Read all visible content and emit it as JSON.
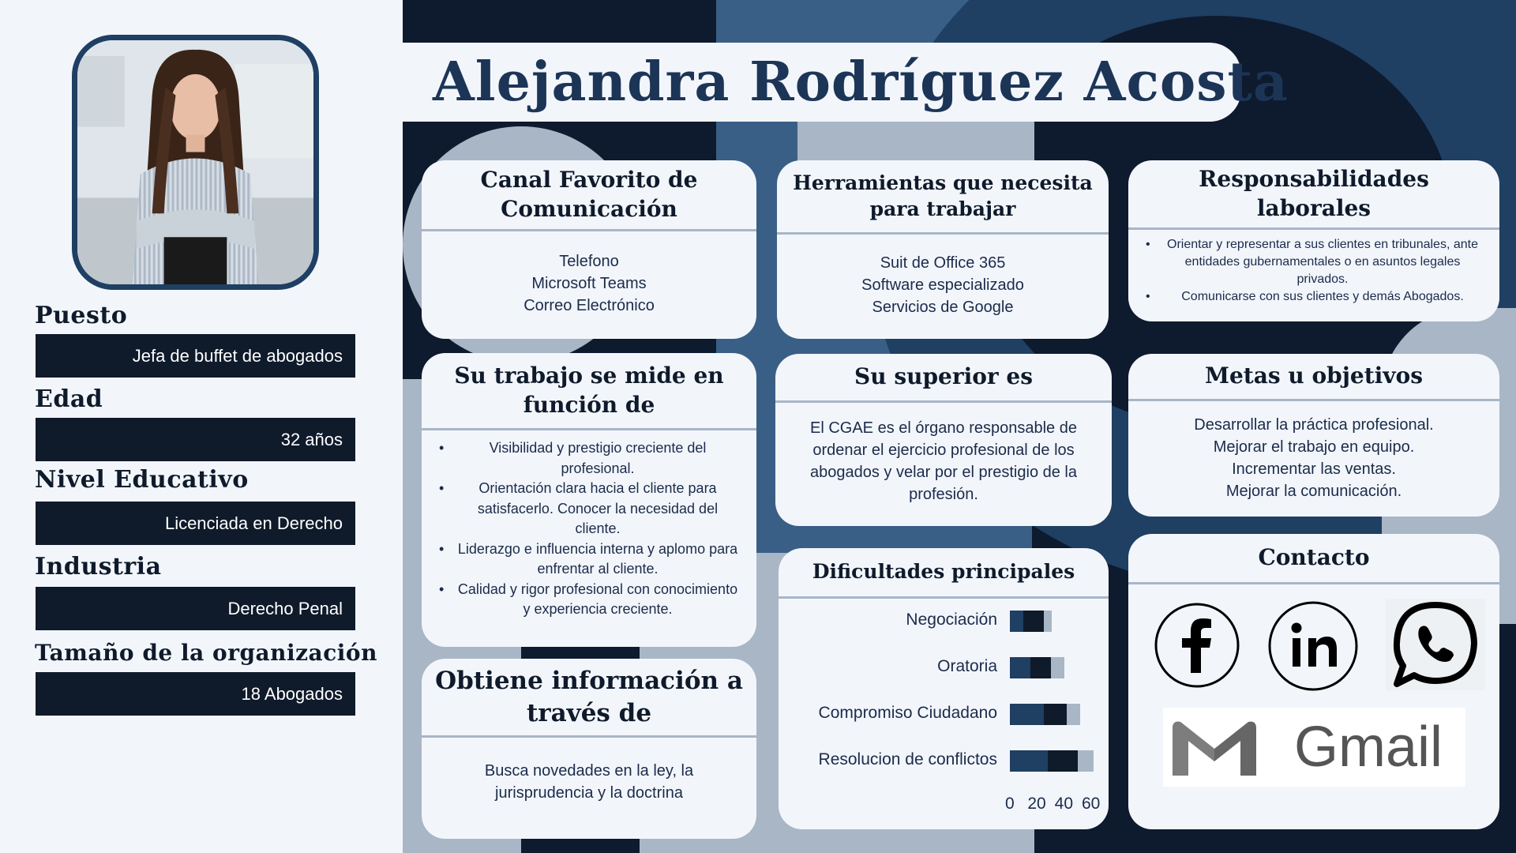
{
  "profile": {
    "name": "Alejandra Rodríguez Acosta",
    "fields": [
      {
        "label": "Puesto",
        "value": "Jefa de buffet de abogados"
      },
      {
        "label": "Edad",
        "value": "32 años"
      },
      {
        "label": "Nivel Educativo",
        "value": "Licenciada en Derecho"
      },
      {
        "label": "Industria",
        "value": "Derecho Penal"
      },
      {
        "label": "Tamaño de la organización",
        "value": "18 Abogados"
      }
    ]
  },
  "cards": {
    "canal": {
      "title": "Canal Favorito de Comunicación",
      "items": [
        "Telefono",
        "Microsoft Teams",
        "Correo Electrónico"
      ]
    },
    "herramientas": {
      "title": "Herramientas que necesita para trabajar",
      "items": [
        "Suit de Office 365",
        "Software especializado",
        "Servicios de Google"
      ]
    },
    "responsabilidades": {
      "title": "Responsabilidades laborales",
      "items": [
        "Orientar y representar a sus clientes en tribunales, ante entidades gubernamentales o en asuntos legales privados.",
        "Comunicarse con sus clientes y demás Abogados."
      ]
    },
    "trabajo": {
      "title": "Su trabajo se mide en función de",
      "items": [
        "Visibilidad y prestigio creciente del profesional.",
        "Orientación clara hacia el cliente para satisfacerlo. Conocer la necesidad del cliente.",
        "Liderazgo e influencia interna y aplomo para enfrentar al cliente.",
        "Calidad y rigor profesional con conocimiento y experiencia creciente."
      ]
    },
    "superior": {
      "title": "Su superior es",
      "text": "El CGAE es el órgano responsable de ordenar el ejercicio profesional de los abogados y velar por el prestigio de la profesión."
    },
    "metas": {
      "title": "Metas u objetivos",
      "items": [
        "Desarrollar la práctica profesional.",
        "Mejorar el trabajo en equipo.",
        "Incrementar las ventas.",
        "Mejorar la comunicación."
      ]
    },
    "informacion": {
      "title": "Obtiene información a través de",
      "text": "Busca novedades en la ley, la jurisprudencia y la doctrina"
    },
    "dificultades": {
      "title": "Dificultades principales"
    },
    "contacto": {
      "title": "Contacto",
      "gmail_label": "Gmail"
    }
  },
  "chart_data": {
    "type": "bar",
    "orientation": "horizontal",
    "stacked": true,
    "categories": [
      "Negociación",
      "Oratoria",
      "Compromiso Ciudadano",
      "Resolucion de conflictos"
    ],
    "series": [
      {
        "values": [
          10,
          15,
          25,
          28
        ],
        "color": "#1f3f63"
      },
      {
        "values": [
          15,
          15,
          17,
          22
        ],
        "color": "#0f1a2b"
      },
      {
        "values": [
          6,
          10,
          10,
          12
        ],
        "color": "#a9b6c6"
      }
    ],
    "xticks": [
      "0",
      "20",
      "40",
      "60"
    ],
    "xlim": [
      0,
      60
    ]
  },
  "colors": {
    "navy_dark": "#0f1a2b",
    "navy": "#1f3f63",
    "steel": "#3a5f86",
    "light_blue": "#a9b6c6",
    "background": "#f2f6fb"
  }
}
